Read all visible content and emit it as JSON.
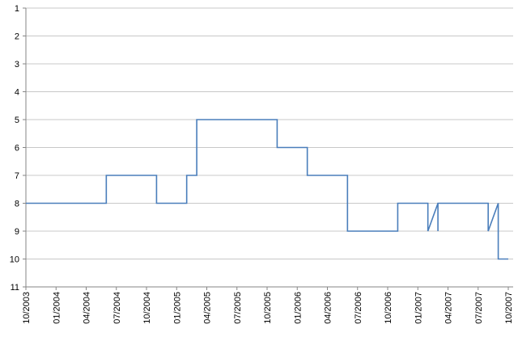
{
  "chart_data": {
    "type": "line",
    "x": [
      "10/2003",
      "06/2004",
      "06/2004",
      "11/2004",
      "11/2004",
      "02/2005",
      "02/2005",
      "03/2005",
      "03/2005",
      "11/2005",
      "11/2005",
      "02/2006",
      "02/2006",
      "06/2006",
      "06/2006",
      "11/2006",
      "11/2006",
      "02/2007",
      "02/2007",
      "03/2007",
      "03/2007",
      "03/2007",
      "08/2007",
      "08/2007",
      "09/2007",
      "09/2007",
      "10/2007"
    ],
    "series": [
      {
        "color": "#4a7ebb",
        "values": [
          8,
          8,
          7,
          7,
          8,
          8,
          7,
          7,
          5,
          5,
          6,
          6,
          7,
          7,
          9,
          9,
          8,
          8,
          9,
          8,
          9,
          8,
          8,
          9,
          8,
          10,
          10
        ]
      }
    ],
    "xlim": [
      "10/2003",
      "10/2007"
    ],
    "xticks": [
      "10/2003",
      "01/2004",
      "04/2004",
      "07/2004",
      "10/2004",
      "01/2005",
      "04/2005",
      "07/2005",
      "10/2005",
      "01/2006",
      "04/2006",
      "07/2006",
      "10/2006",
      "01/2007",
      "04/2007",
      "07/2007",
      "10/2007"
    ],
    "ylim": [
      1,
      11
    ],
    "y_inverted": true,
    "yticks": [
      1,
      2,
      3,
      4,
      5,
      6,
      7,
      8,
      9,
      10,
      11
    ],
    "grid": true
  }
}
